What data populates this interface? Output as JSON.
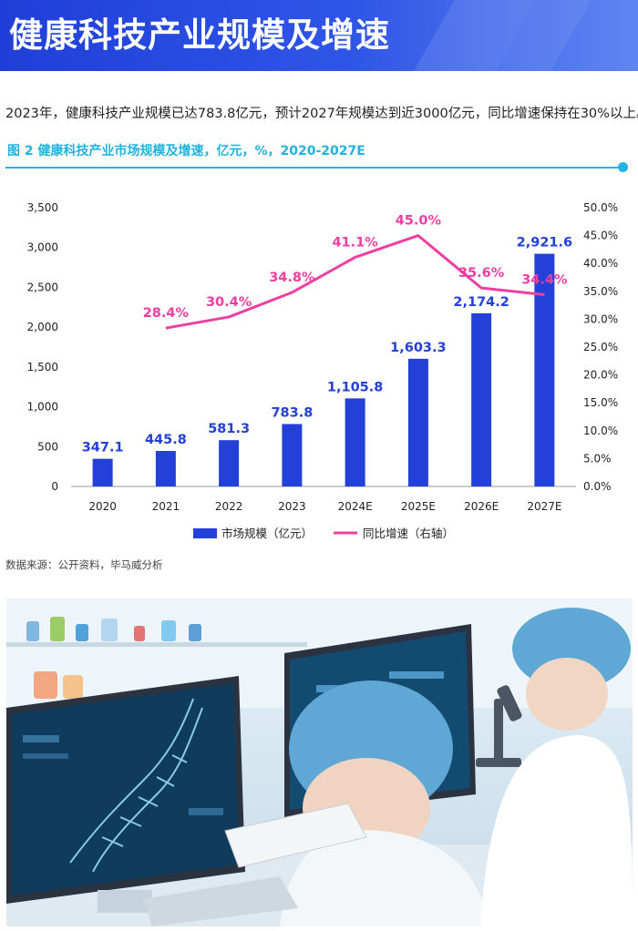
{
  "header": {
    "title": "健康科技产业规模及增速"
  },
  "intro": {
    "text": "2023年，健康科技产业规模已达783.8亿元，预计2027年规模达到近3000亿元，同比增速保持在30%以上。"
  },
  "figure": {
    "caption": "图 2 健康科技产业市场规模及增速，亿元，%，2020-2027E",
    "source": "数据来源：公开资料，毕马威分析"
  },
  "colors": {
    "bar": "#2340d8",
    "line": "#ee3fa1",
    "accent": "#23b4e4",
    "header": "#1f3fd8"
  },
  "chart_data": {
    "type": "bar",
    "categories": [
      "2020",
      "2021",
      "2022",
      "2023",
      "2024E",
      "2025E",
      "2026E",
      "2027E"
    ],
    "series": [
      {
        "name": "市场规模（亿元）",
        "type": "bar",
        "axis": "left",
        "values": [
          347.1,
          445.8,
          581.3,
          783.8,
          1105.8,
          1603.3,
          2174.2,
          2921.6
        ],
        "labels": [
          "347.1",
          "445.8",
          "581.3",
          "783.8",
          "1,105.8",
          "1,603.3",
          "2,174.2",
          "2,921.6"
        ]
      },
      {
        "name": "同比增速（右轴）",
        "type": "line",
        "axis": "right",
        "values": [
          null,
          28.4,
          30.4,
          34.8,
          41.1,
          45.0,
          35.6,
          34.4
        ],
        "labels": [
          "",
          "28.4%",
          "30.4%",
          "34.8%",
          "41.1%",
          "45.0%",
          "35.6%",
          "34.4%"
        ]
      }
    ],
    "y_left": {
      "ylim": [
        0,
        3500
      ],
      "ticks": [
        "0",
        "500",
        "1,000",
        "1,500",
        "2,000",
        "2,500",
        "3,000",
        "3,500"
      ]
    },
    "y_right": {
      "ylim": [
        0,
        50
      ],
      "ticks": [
        "0.0%",
        "5.0%",
        "10.0%",
        "15.0%",
        "20.0%",
        "25.0%",
        "30.0%",
        "35.0%",
        "40.0%",
        "45.0%",
        "50.0%"
      ]
    },
    "grid": false,
    "legend_position": "bottom"
  },
  "photo": {
    "icons": [
      "dna-helix-icon",
      "microscope-icon",
      "lab-flask-icon"
    ]
  }
}
